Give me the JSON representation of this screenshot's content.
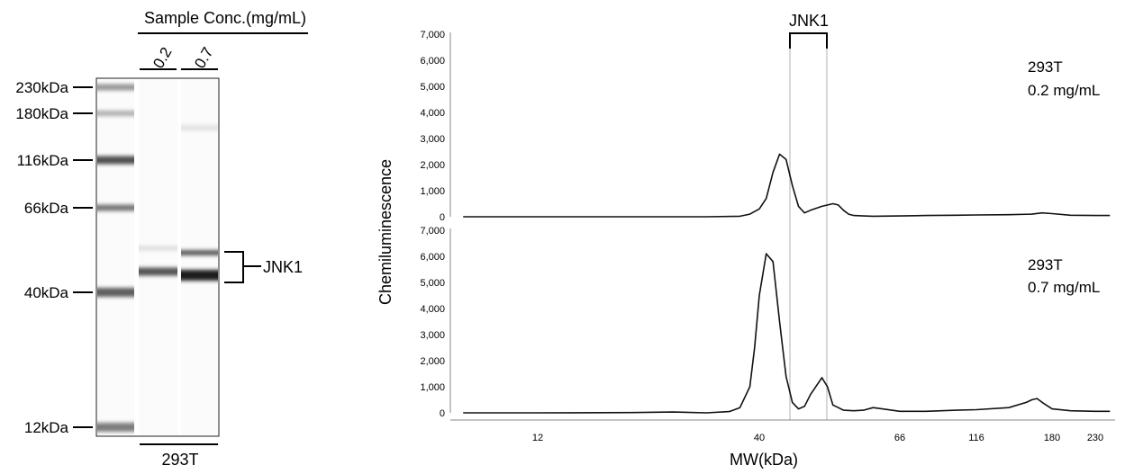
{
  "blot": {
    "sample_conc_label": "Sample Conc.(mg/mL)",
    "lanes": [
      "0.2",
      "0.7"
    ],
    "markers": [
      {
        "label": "230kDa",
        "mw": 230
      },
      {
        "label": "180kDa",
        "mw": 180
      },
      {
        "label": "116kDa",
        "mw": 116
      },
      {
        "label": "66kDa",
        "mw": 66
      },
      {
        "label": "40kDa",
        "mw": 40
      },
      {
        "label": "12kDa",
        "mw": 12
      }
    ],
    "bracket_label": "JNK1",
    "cell_line": "293T"
  },
  "chart_data": [
    {
      "type": "line",
      "title": "",
      "annotation": [
        "293T",
        "0.2 mg/mL"
      ],
      "peak_label": "JNK1",
      "xlabel": "MW(kDa)",
      "ylabel": "Chemiluminescence",
      "ylim": [
        0,
        7000
      ],
      "yticks": [
        "7,000",
        "6,000",
        "5,000",
        "4,000",
        "3,000",
        "2,000",
        "1,000",
        "0"
      ],
      "xticks": [],
      "series": [
        {
          "x": [
            8,
            12,
            20,
            30,
            36,
            38,
            40,
            41,
            42,
            43,
            44,
            45,
            46,
            47,
            48,
            50,
            52,
            53,
            54,
            55,
            56,
            58,
            60,
            66,
            80,
            100,
            116,
            140,
            160,
            170,
            180,
            200,
            230,
            250
          ],
          "y": [
            0,
            0,
            0,
            0,
            20,
            100,
            300,
            700,
            1700,
            2400,
            2200,
            1200,
            400,
            150,
            250,
            400,
            500,
            450,
            250,
            100,
            50,
            30,
            20,
            30,
            50,
            60,
            70,
            80,
            100,
            150,
            120,
            60,
            50,
            50
          ]
        }
      ]
    },
    {
      "type": "line",
      "title": "",
      "annotation": [
        "293T",
        "0.7 mg/mL"
      ],
      "xlabel": "MW(kDa)",
      "ylabel": "Chemiluminescence",
      "ylim": [
        0,
        7000
      ],
      "yticks": [
        "7,000",
        "6,000",
        "5,000",
        "4,000",
        "3,000",
        "2,000",
        "1,000",
        "0"
      ],
      "xticks": [
        "12",
        "40",
        "66",
        "116",
        "180",
        "230"
      ],
      "series": [
        {
          "x": [
            8,
            12,
            20,
            25,
            30,
            34,
            36,
            38,
            39,
            40,
            41,
            42,
            43,
            44,
            45,
            46,
            47,
            48,
            50,
            51,
            52,
            53,
            54,
            56,
            58,
            60,
            62,
            66,
            80,
            100,
            116,
            140,
            155,
            160,
            165,
            170,
            180,
            200,
            230,
            250
          ],
          "y": [
            0,
            0,
            10,
            30,
            0,
            50,
            200,
            1000,
            2500,
            4500,
            6100,
            5800,
            3500,
            1400,
            400,
            150,
            250,
            700,
            1350,
            1000,
            300,
            200,
            100,
            80,
            100,
            200,
            150,
            60,
            60,
            100,
            120,
            200,
            400,
            500,
            550,
            400,
            150,
            80,
            60,
            60
          ]
        }
      ]
    }
  ]
}
